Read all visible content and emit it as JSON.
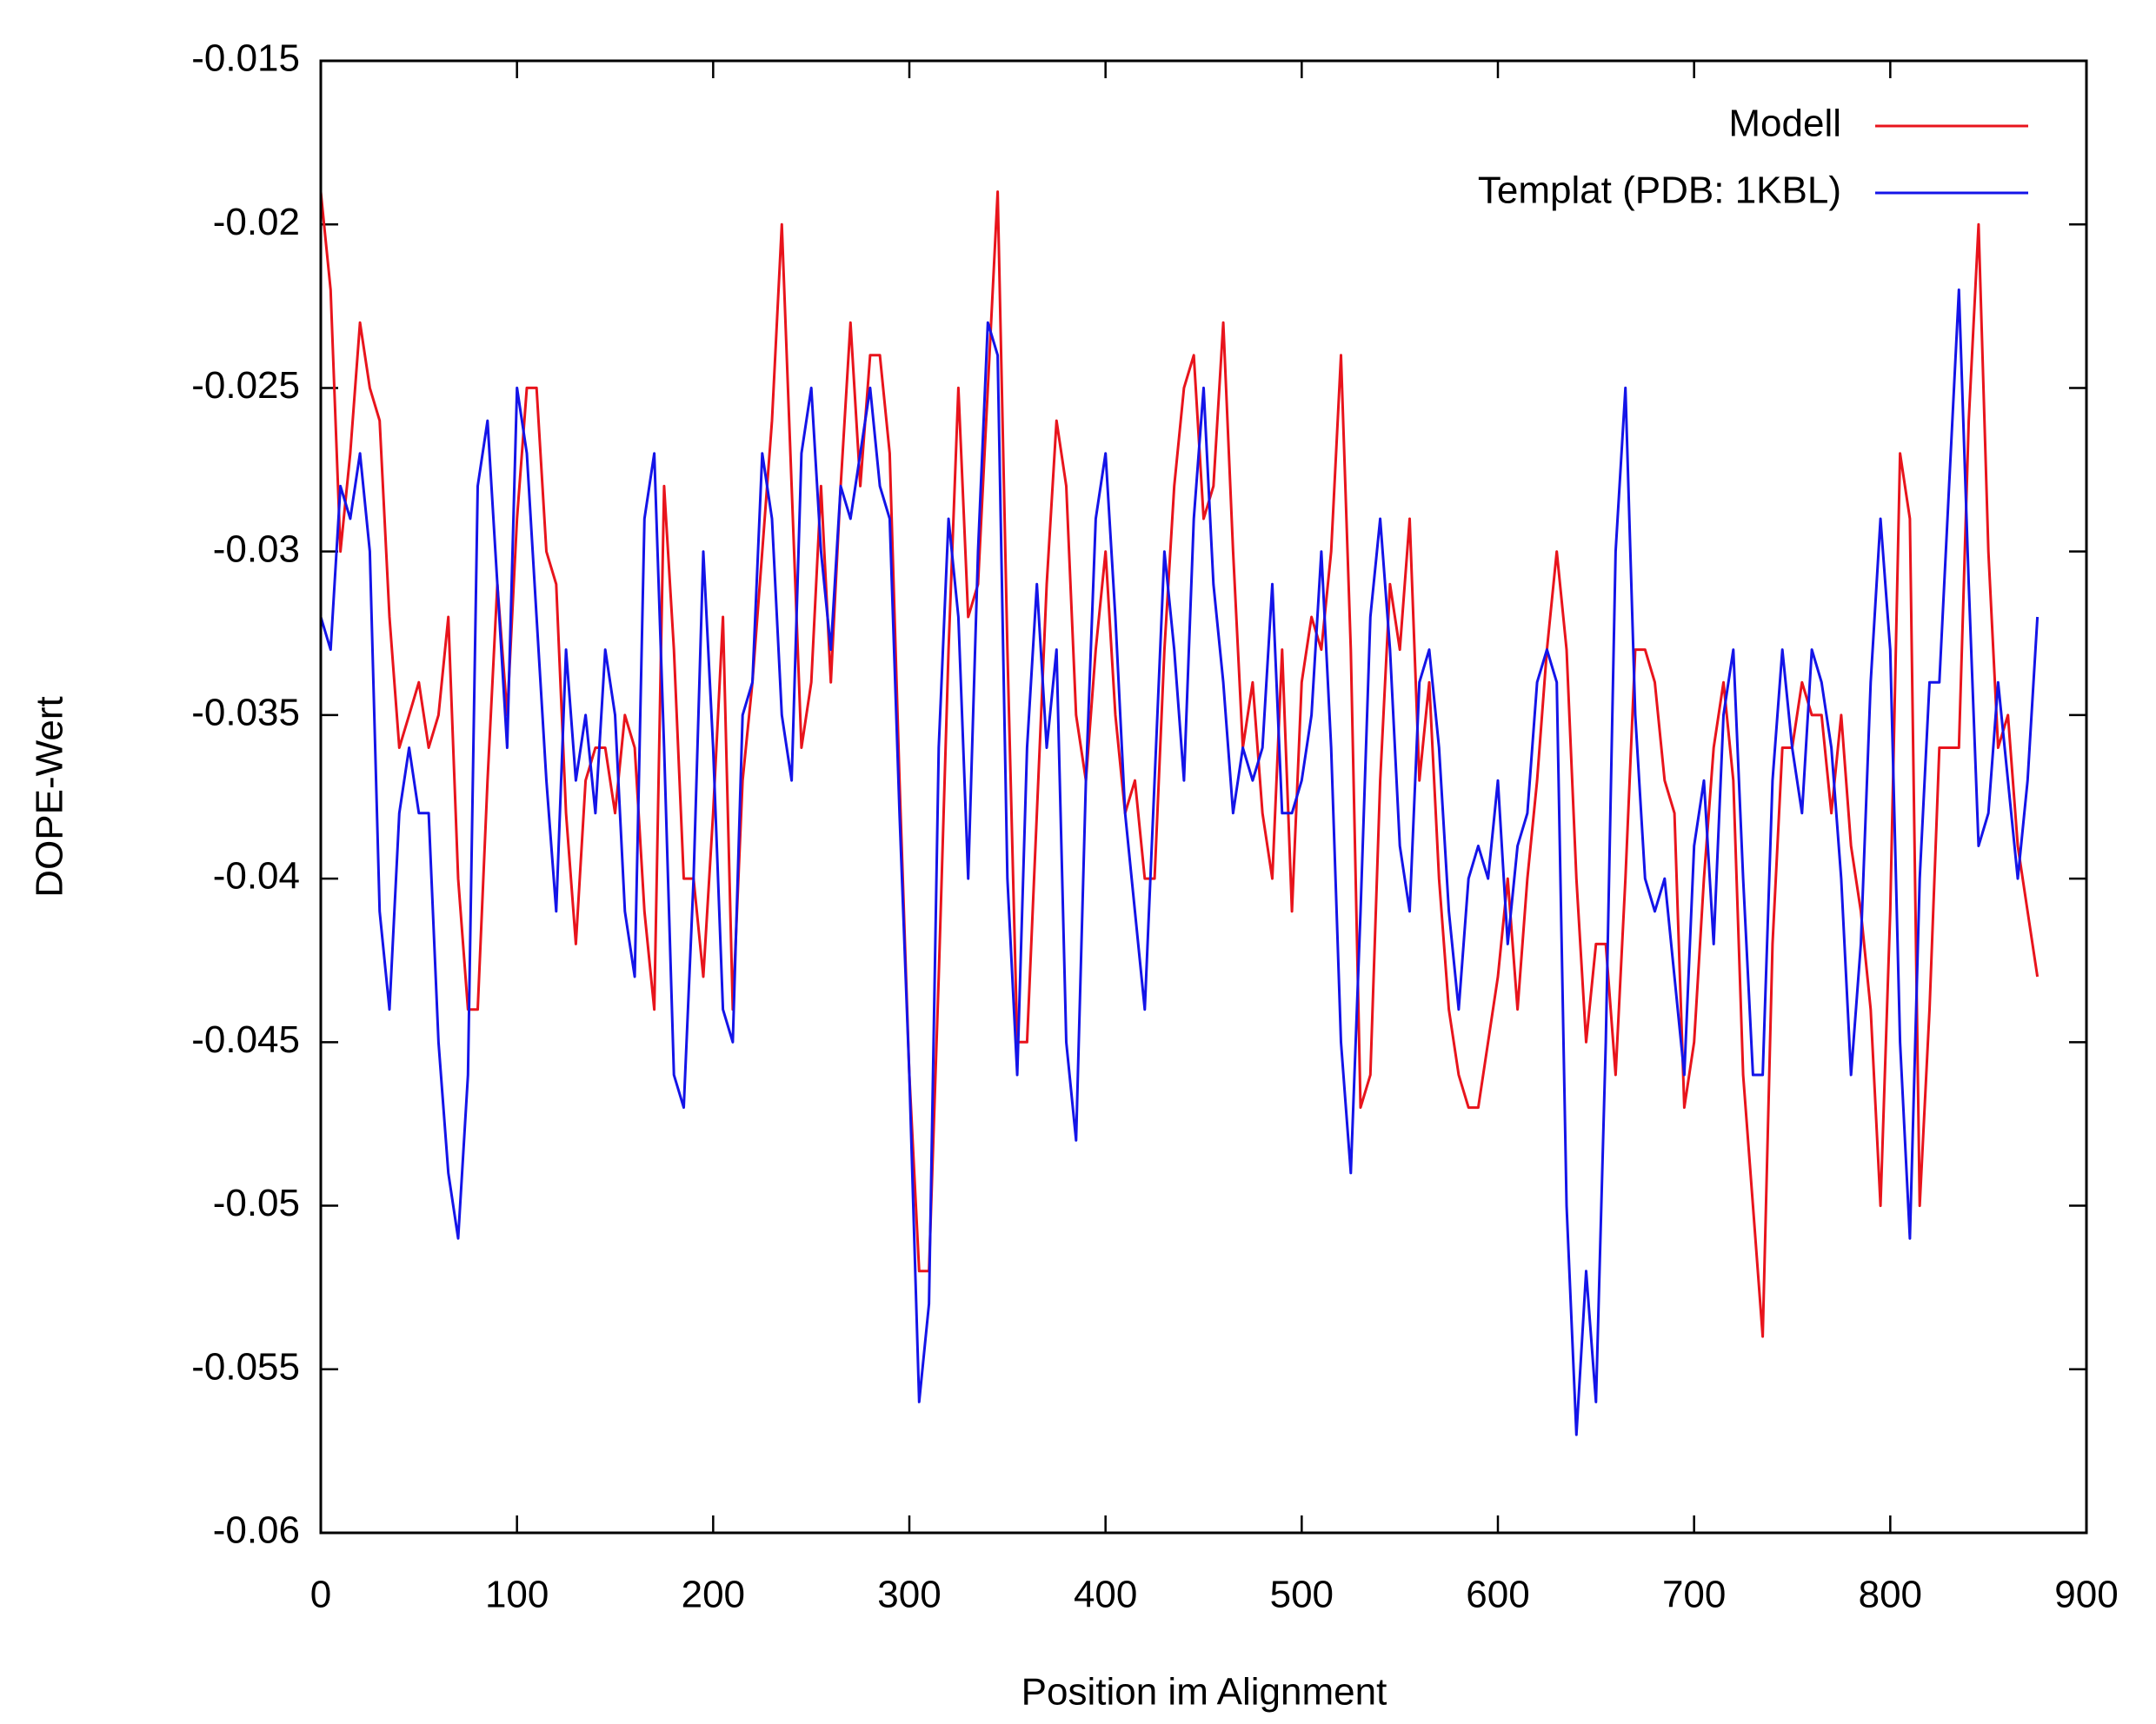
{
  "chart_data": {
    "type": "line",
    "xlabel": "Position im Alignment",
    "ylabel": "DOPE-Wert",
    "x": [
      0,
      5,
      10,
      15,
      20,
      25,
      30,
      35,
      40,
      45,
      50,
      55,
      60,
      65,
      70,
      75,
      80,
      85,
      90,
      95,
      100,
      105,
      110,
      115,
      120,
      125,
      130,
      135,
      140,
      145,
      150,
      155,
      160,
      165,
      170,
      175,
      180,
      185,
      190,
      195,
      200,
      205,
      210,
      215,
      220,
      225,
      230,
      235,
      240,
      245,
      250,
      255,
      260,
      265,
      270,
      275,
      280,
      285,
      290,
      295,
      300,
      305,
      310,
      315,
      320,
      325,
      330,
      335,
      340,
      345,
      350,
      355,
      360,
      365,
      370,
      375,
      380,
      385,
      390,
      395,
      400,
      405,
      410,
      415,
      420,
      425,
      430,
      435,
      440,
      445,
      450,
      455,
      460,
      465,
      470,
      475,
      480,
      485,
      490,
      495,
      500,
      505,
      510,
      515,
      520,
      525,
      530,
      535,
      540,
      545,
      550,
      555,
      560,
      565,
      570,
      575,
      580,
      585,
      590,
      595,
      600,
      605,
      610,
      615,
      620,
      625,
      630,
      635,
      640,
      645,
      650,
      655,
      660,
      665,
      670,
      675,
      680,
      685,
      690,
      695,
      700,
      705,
      710,
      715,
      720,
      725,
      730,
      735,
      740,
      745,
      750,
      755,
      760,
      765,
      770,
      775,
      780,
      785,
      790,
      795,
      800,
      805,
      810,
      815,
      820,
      825,
      830,
      835,
      840,
      845,
      850,
      855,
      860,
      865,
      870,
      875
    ],
    "series": [
      {
        "name": "Modell",
        "color": "#e8141c",
        "values": [
          -0.019,
          -0.022,
          -0.03,
          -0.027,
          -0.023,
          -0.025,
          -0.026,
          -0.032,
          -0.036,
          -0.035,
          -0.034,
          -0.036,
          -0.035,
          -0.032,
          -0.04,
          -0.044,
          -0.044,
          -0.037,
          -0.031,
          -0.035,
          -0.029,
          -0.025,
          -0.025,
          -0.03,
          -0.031,
          -0.038,
          -0.042,
          -0.037,
          -0.036,
          -0.036,
          -0.038,
          -0.035,
          -0.036,
          -0.041,
          -0.044,
          -0.028,
          -0.033,
          -0.04,
          -0.04,
          -0.043,
          -0.038,
          -0.032,
          -0.044,
          -0.037,
          -0.034,
          -0.03,
          -0.026,
          -0.02,
          -0.028,
          -0.036,
          -0.034,
          -0.028,
          -0.034,
          -0.028,
          -0.023,
          -0.028,
          -0.024,
          -0.024,
          -0.027,
          -0.037,
          -0.046,
          -0.052,
          -0.052,
          -0.043,
          -0.033,
          -0.025,
          -0.032,
          -0.031,
          -0.025,
          -0.019,
          -0.033,
          -0.045,
          -0.045,
          -0.038,
          -0.031,
          -0.026,
          -0.028,
          -0.035,
          -0.037,
          -0.033,
          -0.03,
          -0.035,
          -0.038,
          -0.037,
          -0.04,
          -0.04,
          -0.033,
          -0.028,
          -0.025,
          -0.024,
          -0.029,
          -0.028,
          -0.023,
          -0.03,
          -0.036,
          -0.034,
          -0.038,
          -0.04,
          -0.033,
          -0.041,
          -0.034,
          -0.032,
          -0.033,
          -0.03,
          -0.024,
          -0.033,
          -0.047,
          -0.046,
          -0.037,
          -0.031,
          -0.033,
          -0.029,
          -0.037,
          -0.034,
          -0.04,
          -0.044,
          -0.046,
          -0.047,
          -0.047,
          -0.045,
          -0.043,
          -0.04,
          -0.044,
          -0.04,
          -0.037,
          -0.033,
          -0.03,
          -0.033,
          -0.04,
          -0.045,
          -0.042,
          -0.042,
          -0.046,
          -0.04,
          -0.033,
          -0.033,
          -0.034,
          -0.037,
          -0.038,
          -0.047,
          -0.045,
          -0.04,
          -0.036,
          -0.034,
          -0.037,
          -0.046,
          -0.05,
          -0.054,
          -0.042,
          -0.036,
          -0.036,
          -0.034,
          -0.035,
          -0.035,
          -0.038,
          -0.035,
          -0.039,
          -0.041,
          -0.044,
          -0.05,
          -0.041,
          -0.027,
          -0.029,
          -0.05,
          -0.044,
          -0.036,
          -0.036,
          -0.036,
          -0.026,
          -0.02,
          -0.03,
          -0.036,
          -0.035,
          -0.039,
          -0.041,
          -0.043
        ]
      },
      {
        "name": "Templat (PDB: 1KBL)",
        "color": "#1414e8",
        "values": [
          -0.032,
          -0.033,
          -0.028,
          -0.029,
          -0.027,
          -0.03,
          -0.041,
          -0.044,
          -0.038,
          -0.036,
          -0.038,
          -0.038,
          -0.045,
          -0.049,
          -0.051,
          -0.046,
          -0.028,
          -0.026,
          -0.031,
          -0.036,
          -0.025,
          -0.027,
          -0.032,
          -0.037,
          -0.041,
          -0.033,
          -0.037,
          -0.035,
          -0.038,
          -0.033,
          -0.035,
          -0.041,
          -0.043,
          -0.029,
          -0.027,
          -0.036,
          -0.046,
          -0.047,
          -0.04,
          -0.03,
          -0.036,
          -0.044,
          -0.045,
          -0.035,
          -0.034,
          -0.027,
          -0.029,
          -0.035,
          -0.037,
          -0.027,
          -0.025,
          -0.03,
          -0.033,
          -0.028,
          -0.029,
          -0.027,
          -0.025,
          -0.028,
          -0.029,
          -0.038,
          -0.046,
          -0.056,
          -0.053,
          -0.036,
          -0.029,
          -0.032,
          -0.04,
          -0.03,
          -0.023,
          -0.024,
          -0.04,
          -0.046,
          -0.036,
          -0.031,
          -0.036,
          -0.033,
          -0.045,
          -0.048,
          -0.037,
          -0.029,
          -0.027,
          -0.032,
          -0.038,
          -0.041,
          -0.044,
          -0.037,
          -0.03,
          -0.033,
          -0.037,
          -0.029,
          -0.025,
          -0.031,
          -0.034,
          -0.038,
          -0.036,
          -0.037,
          -0.036,
          -0.031,
          -0.038,
          -0.038,
          -0.037,
          -0.035,
          -0.03,
          -0.036,
          -0.045,
          -0.049,
          -0.041,
          -0.032,
          -0.029,
          -0.033,
          -0.039,
          -0.041,
          -0.034,
          -0.033,
          -0.036,
          -0.041,
          -0.044,
          -0.04,
          -0.039,
          -0.04,
          -0.037,
          -0.042,
          -0.039,
          -0.038,
          -0.034,
          -0.033,
          -0.034,
          -0.05,
          -0.057,
          -0.052,
          -0.056,
          -0.045,
          -0.03,
          -0.025,
          -0.035,
          -0.04,
          -0.041,
          -0.04,
          -0.043,
          -0.046,
          -0.039,
          -0.037,
          -0.042,
          -0.035,
          -0.033,
          -0.04,
          -0.046,
          -0.046,
          -0.037,
          -0.033,
          -0.036,
          -0.038,
          -0.033,
          -0.034,
          -0.036,
          -0.04,
          -0.046,
          -0.042,
          -0.034,
          -0.029,
          -0.033,
          -0.045,
          -0.051,
          -0.04,
          -0.034,
          -0.034,
          -0.028,
          -0.022,
          -0.031,
          -0.039,
          -0.038,
          -0.034,
          -0.037,
          -0.04,
          -0.037,
          -0.032
        ]
      }
    ],
    "xlim": [
      0,
      900
    ],
    "xticks": [
      0,
      100,
      200,
      300,
      400,
      500,
      600,
      700,
      800,
      900
    ],
    "ylim": [
      -0.06,
      -0.015
    ],
    "yticks": [
      -0.06,
      -0.055,
      -0.05,
      -0.045,
      -0.04,
      -0.035,
      -0.03,
      -0.025,
      -0.02,
      -0.015
    ],
    "legend": "upper right"
  }
}
